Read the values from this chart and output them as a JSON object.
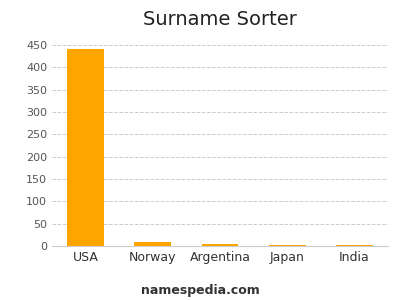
{
  "title": "Surname Sorter",
  "categories": [
    "USA",
    "Norway",
    "Argentina",
    "Japan",
    "India"
  ],
  "values": [
    441,
    8,
    4,
    2,
    2
  ],
  "bar_color": "#FFA500",
  "background_color": "#ffffff",
  "ylim": [
    0,
    470
  ],
  "yticks": [
    0,
    50,
    100,
    150,
    200,
    250,
    300,
    350,
    400,
    450
  ],
  "grid_color": "#cccccc",
  "title_fontsize": 14,
  "tick_fontsize": 8,
  "footer_text": "namespedia.com",
  "footer_fontsize": 9,
  "bar_width": 0.55
}
